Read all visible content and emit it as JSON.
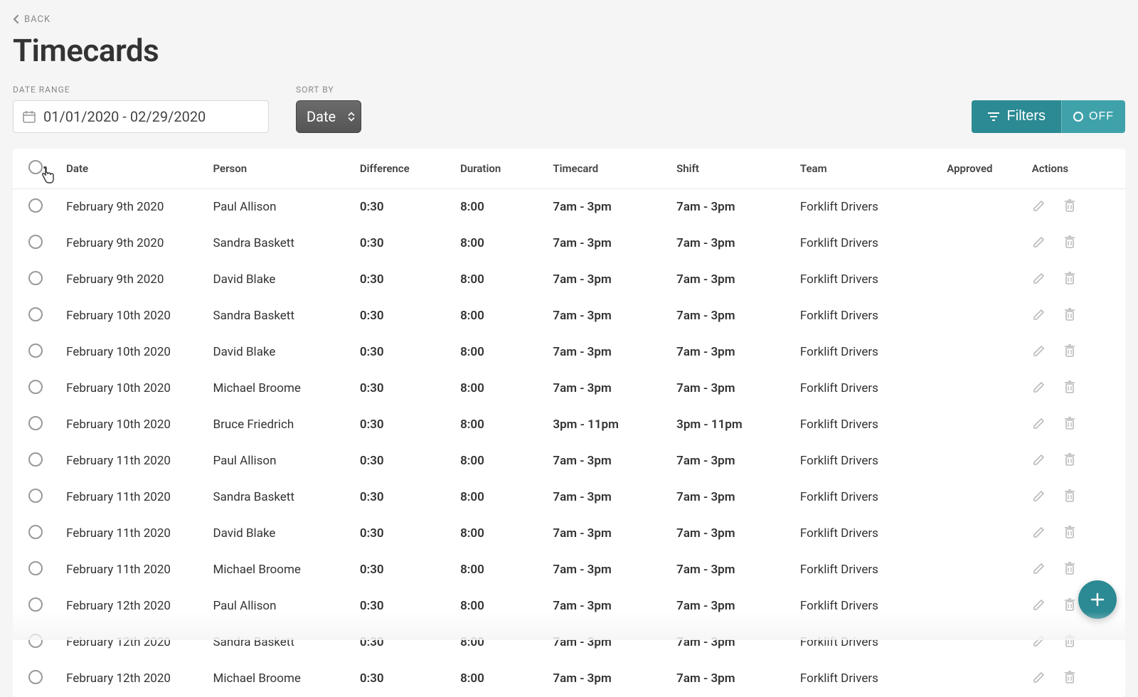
{
  "nav": {
    "back_label": "BACK"
  },
  "page": {
    "title": "Timecards"
  },
  "controls": {
    "date_range_label": "DATE RANGE",
    "date_range_value": "01/01/2020 - 02/29/2020",
    "sort_by_label": "SORT BY",
    "sort_value": "Date",
    "filters_label": "Filters",
    "off_label": "OFF"
  },
  "colors": {
    "accent": "#2b8a93",
    "accent_light": "#3fa2ab",
    "bg": "#f5f5f5",
    "text": "#333333",
    "muted": "#888888",
    "border": "#e8e8e8",
    "icon_muted": "#bbbbbb"
  },
  "table": {
    "columns": [
      "",
      "Date",
      "Person",
      "Difference",
      "Duration",
      "Timecard",
      "Shift",
      "Team",
      "Approved",
      "Actions"
    ],
    "column_keys": [
      "check",
      "date",
      "person",
      "difference",
      "duration",
      "timecard",
      "shift",
      "team",
      "approved",
      "actions"
    ],
    "rows": [
      {
        "date": "February 9th 2020",
        "person": "Paul Allison",
        "difference": "0:30",
        "duration": "8:00",
        "timecard": "7am - 3pm",
        "shift": "7am - 3pm",
        "team": "Forklift Drivers",
        "approved": ""
      },
      {
        "date": "February 9th 2020",
        "person": "Sandra Baskett",
        "difference": "0:30",
        "duration": "8:00",
        "timecard": "7am - 3pm",
        "shift": "7am - 3pm",
        "team": "Forklift Drivers",
        "approved": ""
      },
      {
        "date": "February 9th 2020",
        "person": "David Blake",
        "difference": "0:30",
        "duration": "8:00",
        "timecard": "7am - 3pm",
        "shift": "7am - 3pm",
        "team": "Forklift Drivers",
        "approved": ""
      },
      {
        "date": "February 10th 2020",
        "person": "Sandra Baskett",
        "difference": "0:30",
        "duration": "8:00",
        "timecard": "7am - 3pm",
        "shift": "7am - 3pm",
        "team": "Forklift Drivers",
        "approved": ""
      },
      {
        "date": "February 10th 2020",
        "person": "David Blake",
        "difference": "0:30",
        "duration": "8:00",
        "timecard": "7am - 3pm",
        "shift": "7am - 3pm",
        "team": "Forklift Drivers",
        "approved": ""
      },
      {
        "date": "February 10th 2020",
        "person": "Michael Broome",
        "difference": "0:30",
        "duration": "8:00",
        "timecard": "7am - 3pm",
        "shift": "7am - 3pm",
        "team": "Forklift Drivers",
        "approved": ""
      },
      {
        "date": "February 10th 2020",
        "person": "Bruce Friedrich",
        "difference": "0:30",
        "duration": "8:00",
        "timecard": "3pm - 11pm",
        "shift": "3pm - 11pm",
        "team": "Forklift Drivers",
        "approved": ""
      },
      {
        "date": "February 11th 2020",
        "person": "Paul Allison",
        "difference": "0:30",
        "duration": "8:00",
        "timecard": "7am - 3pm",
        "shift": "7am - 3pm",
        "team": "Forklift Drivers",
        "approved": ""
      },
      {
        "date": "February 11th 2020",
        "person": "Sandra Baskett",
        "difference": "0:30",
        "duration": "8:00",
        "timecard": "7am - 3pm",
        "shift": "7am - 3pm",
        "team": "Forklift Drivers",
        "approved": ""
      },
      {
        "date": "February 11th 2020",
        "person": "David Blake",
        "difference": "0:30",
        "duration": "8:00",
        "timecard": "7am - 3pm",
        "shift": "7am - 3pm",
        "team": "Forklift Drivers",
        "approved": ""
      },
      {
        "date": "February 11th 2020",
        "person": "Michael Broome",
        "difference": "0:30",
        "duration": "8:00",
        "timecard": "7am - 3pm",
        "shift": "7am - 3pm",
        "team": "Forklift Drivers",
        "approved": ""
      },
      {
        "date": "February 12th 2020",
        "person": "Paul Allison",
        "difference": "0:30",
        "duration": "8:00",
        "timecard": "7am - 3pm",
        "shift": "7am - 3pm",
        "team": "Forklift Drivers",
        "approved": ""
      },
      {
        "date": "February 12th 2020",
        "person": "Sandra Baskett",
        "difference": "0:30",
        "duration": "8:00",
        "timecard": "7am - 3pm",
        "shift": "7am - 3pm",
        "team": "Forklift Drivers",
        "approved": ""
      },
      {
        "date": "February 12th 2020",
        "person": "Michael Broome",
        "difference": "0:30",
        "duration": "8:00",
        "timecard": "7am - 3pm",
        "shift": "7am - 3pm",
        "team": "Forklift Drivers",
        "approved": ""
      }
    ]
  }
}
